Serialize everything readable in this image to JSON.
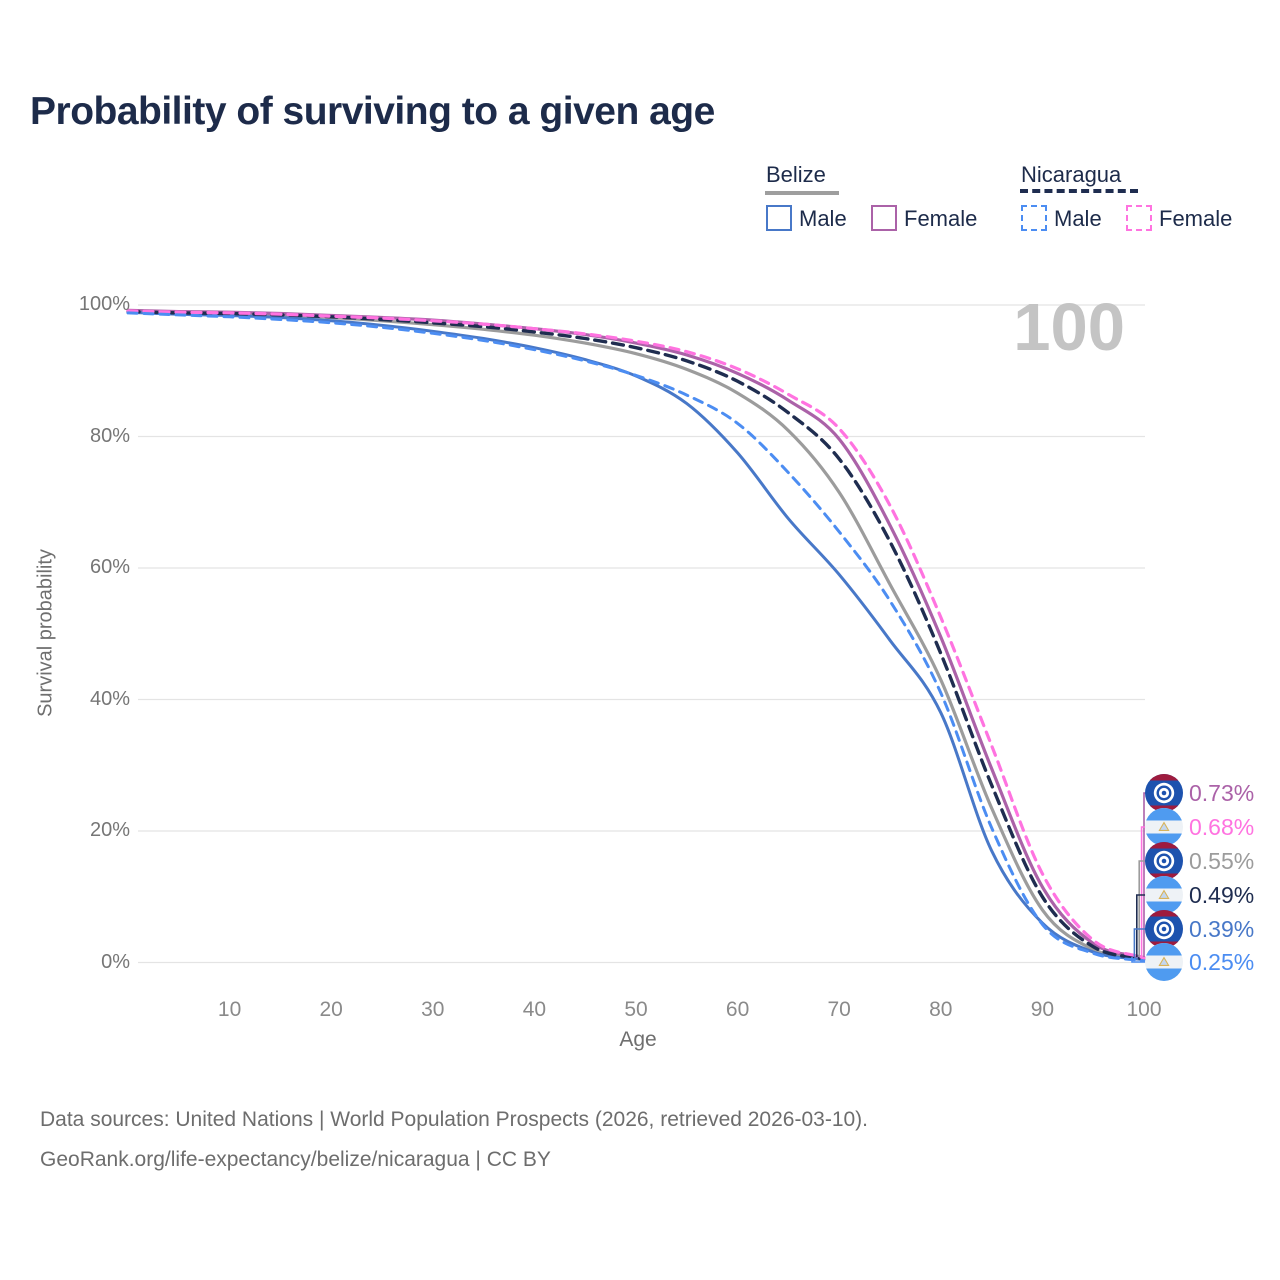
{
  "title": "Probability of surviving to a given age",
  "watermark_age": "100",
  "legend": {
    "groups": [
      {
        "label": "Belize",
        "line_style": "solid",
        "underline_color": "#9e9e9e",
        "items": [
          {
            "label": "Male",
            "color": "#4878c8"
          },
          {
            "label": "Female",
            "color": "#ab62a8"
          }
        ]
      },
      {
        "label": "Nicaragua",
        "line_style": "dashed",
        "underline_color": "#1f2d50",
        "items": [
          {
            "label": "Male",
            "color": "#4c8df2"
          },
          {
            "label": "Female",
            "color": "#ff73e0"
          }
        ]
      }
    ]
  },
  "axes": {
    "y": {
      "label": "Survival probability",
      "ticks": [
        "100%",
        "80%",
        "60%",
        "40%",
        "20%",
        "0%"
      ],
      "tick_values": [
        100,
        80,
        60,
        40,
        20,
        0
      ]
    },
    "x": {
      "label": "Age",
      "ticks": [
        "10",
        "20",
        "30",
        "40",
        "50",
        "60",
        "70",
        "80",
        "90",
        "100"
      ],
      "tick_values": [
        10,
        20,
        30,
        40,
        50,
        60,
        70,
        80,
        90,
        100
      ]
    }
  },
  "chart_data": {
    "type": "line",
    "title": "Probability of surviving to a given age",
    "xlabel": "Age",
    "ylabel": "Survival probability",
    "xlim": [
      0,
      100
    ],
    "ylim": [
      0,
      100
    ],
    "grid": "horizontal-only",
    "legend_position": "top-right",
    "x": [
      0,
      5,
      10,
      15,
      20,
      25,
      30,
      35,
      40,
      45,
      50,
      55,
      60,
      65,
      70,
      75,
      80,
      85,
      90,
      95,
      100
    ],
    "series": [
      {
        "id": "belize-all",
        "name": "Belize (both sexes)",
        "color": "#9c9c9c",
        "style": "solid",
        "end_value_pct": 0.55,
        "values": [
          99.1,
          98.9,
          98.7,
          98.5,
          98.1,
          97.6,
          97.0,
          96.3,
          95.4,
          94.2,
          92.6,
          90.2,
          86.6,
          80.9,
          71.5,
          57.5,
          43.0,
          23.5,
          8.0,
          2.0,
          0.55
        ]
      },
      {
        "id": "belize-female",
        "name": "Belize Female",
        "color": "#ab62a8",
        "style": "solid",
        "end_value_pct": 0.73,
        "values": [
          99.2,
          99.0,
          98.9,
          98.7,
          98.4,
          98.1,
          97.7,
          97.1,
          96.4,
          95.5,
          94.2,
          92.4,
          89.6,
          85.5,
          79.6,
          66.5,
          49.5,
          29.5,
          11.5,
          2.9,
          0.73
        ]
      },
      {
        "id": "belize-male",
        "name": "Belize Male",
        "color": "#4878c8",
        "style": "solid",
        "end_value_pct": 0.39,
        "values": [
          98.9,
          98.6,
          98.4,
          98.1,
          97.6,
          96.9,
          96.0,
          94.9,
          93.5,
          91.7,
          89.2,
          85.0,
          77.5,
          67.5,
          59.0,
          49.0,
          38.0,
          17.0,
          6.0,
          1.6,
          0.39
        ]
      },
      {
        "id": "nicaragua-all",
        "name": "Nicaragua (both sexes)",
        "color": "#1f2d50",
        "style": "dashed",
        "end_value_pct": 0.49,
        "values": [
          99.0,
          98.8,
          98.7,
          98.5,
          98.2,
          97.8,
          97.3,
          96.7,
          95.9,
          94.9,
          93.5,
          91.5,
          88.4,
          83.6,
          76.6,
          64.0,
          47.0,
          27.0,
          10.0,
          2.4,
          0.49
        ]
      },
      {
        "id": "nicaragua-female",
        "name": "Nicaragua Female",
        "color": "#ff73e0",
        "style": "dashed",
        "end_value_pct": 0.68,
        "values": [
          99.1,
          98.9,
          98.8,
          98.6,
          98.3,
          98.0,
          97.6,
          97.1,
          96.4,
          95.6,
          94.5,
          92.9,
          90.3,
          86.4,
          81.2,
          69.5,
          52.5,
          33.0,
          13.5,
          3.4,
          0.68
        ]
      },
      {
        "id": "nicaragua-male",
        "name": "Nicaragua Male",
        "color": "#4c8df2",
        "style": "dashed",
        "end_value_pct": 0.25,
        "values": [
          98.8,
          98.5,
          98.2,
          97.8,
          97.3,
          96.6,
          95.7,
          94.6,
          93.2,
          91.5,
          89.3,
          86.3,
          82.0,
          74.5,
          65.5,
          55.0,
          41.0,
          20.5,
          5.8,
          1.4,
          0.25
        ]
      }
    ]
  },
  "end_labels": [
    {
      "value": "0.73%",
      "color": "#ab62a8",
      "flag": "belize",
      "series": "belize-female"
    },
    {
      "value": "0.68%",
      "color": "#ff73e0",
      "flag": "nicaragua",
      "series": "nicaragua-female"
    },
    {
      "value": "0.55%",
      "color": "#9c9c9c",
      "flag": "belize",
      "series": "belize-all"
    },
    {
      "value": "0.49%",
      "color": "#1f2d50",
      "flag": "nicaragua",
      "series": "nicaragua-all"
    },
    {
      "value": "0.39%",
      "color": "#4878c8",
      "flag": "belize",
      "series": "belize-male"
    },
    {
      "value": "0.25%",
      "color": "#4c8df2",
      "flag": "nicaragua",
      "series": "nicaragua-male"
    }
  ],
  "footer": {
    "line1": "Data sources: United Nations | World Population Prospects (2026, retrieved 2026-03-10).",
    "line2": "GeoRank.org/life-expectancy/belize/nicaragua | CC BY"
  }
}
